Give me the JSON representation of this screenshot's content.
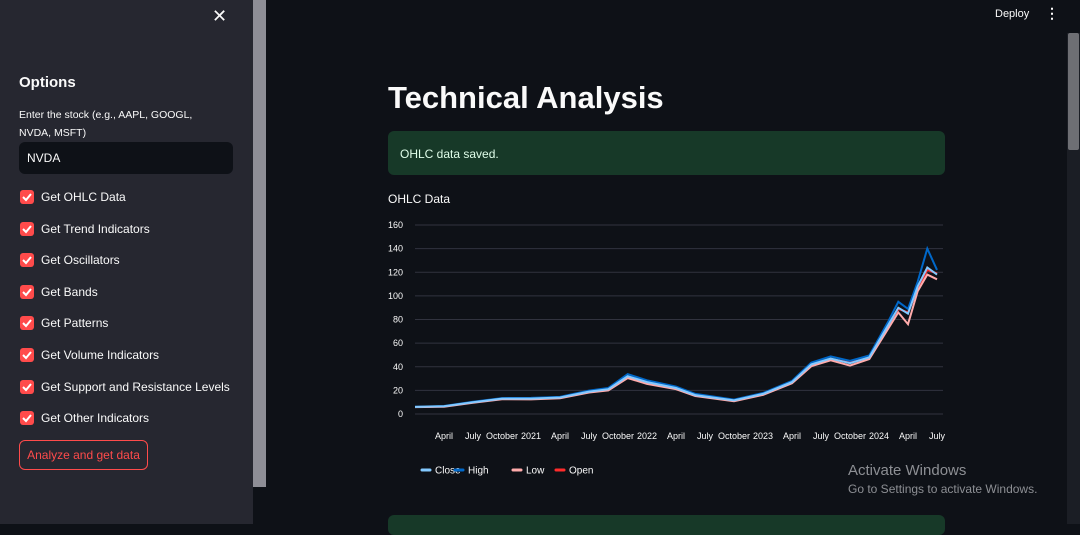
{
  "top_bar": {
    "deploy": "Deploy"
  },
  "sidebar": {
    "title": "Options",
    "input_label": "Enter the stock (e.g., AAPL, GOOGL, NVDA, MSFT)",
    "input_value": "NVDA",
    "checkboxes": [
      {
        "label": "Get OHLC Data",
        "checked": true
      },
      {
        "label": "Get Trend Indicators",
        "checked": true
      },
      {
        "label": "Get Oscillators",
        "checked": true
      },
      {
        "label": "Get Bands",
        "checked": true
      },
      {
        "label": "Get Patterns",
        "checked": true
      },
      {
        "label": "Get Volume Indicators",
        "checked": true
      },
      {
        "label": "Get Support and Resistance Levels",
        "checked": true
      },
      {
        "label": "Get Other Indicators",
        "checked": true
      }
    ],
    "button": "Analyze and get data"
  },
  "main": {
    "title": "Technical Analysis",
    "success_message": "OHLC data saved."
  },
  "chart_data": {
    "type": "line",
    "title": "OHLC Data",
    "x": [
      "2020-01",
      "2020-04",
      "2020-07",
      "2020-10",
      "2021-01",
      "2021-04",
      "2021-07",
      "2021-09",
      "2021-11",
      "2022-01",
      "2022-04",
      "2022-06",
      "2022-10",
      "2023-01",
      "2023-04",
      "2023-06",
      "2023-08",
      "2023-10",
      "2023-12",
      "2024-02",
      "2024-03",
      "2024-04",
      "2024-05",
      "2024-06",
      "2024-07"
    ],
    "series": [
      {
        "name": "Close",
        "color": "#83c9ff",
        "values": [
          6,
          6.5,
          10,
          13,
          13,
          14,
          19,
          21,
          32,
          27,
          22,
          16,
          11.5,
          17,
          27,
          42,
          47,
          43,
          48,
          76,
          90,
          85,
          108,
          124,
          118
        ]
      },
      {
        "name": "High",
        "color": "#0068c9",
        "values": [
          6.2,
          6.8,
          10.4,
          13.5,
          13.6,
          14.5,
          19.8,
          22,
          33.8,
          28.5,
          23.2,
          17,
          12.2,
          17.8,
          28,
          43.5,
          48.8,
          45,
          49.5,
          79,
          95,
          89,
          112,
          140,
          122
        ]
      },
      {
        "name": "Low",
        "color": "#ffabab",
        "values": [
          5.8,
          6.2,
          9.6,
          12.5,
          12.4,
          13.4,
          18.2,
          20,
          30.5,
          25.5,
          21,
          15.2,
          10.8,
          16.2,
          26,
          40.5,
          45.5,
          41,
          46.5,
          73,
          86,
          76,
          104,
          118,
          114
        ]
      },
      {
        "name": "Open",
        "color": "#ff2b2b",
        "values": [
          5.9,
          6.4,
          9.8,
          12.8,
          13.1,
          13.8,
          18.8,
          20.7,
          31.5,
          27.5,
          22.4,
          16.3,
          11.3,
          16.8,
          26.6,
          41.5,
          46.6,
          43.5,
          47.6,
          75,
          89,
          86,
          106,
          122,
          119
        ]
      }
    ],
    "xlim": [
      "2020-01",
      "2024-07"
    ],
    "xticks": [
      {
        "value": "2020-04",
        "label": "April"
      },
      {
        "value": "2020-07",
        "label": "July"
      },
      {
        "value": "2020-10",
        "label": "October"
      },
      {
        "value": "2021-01",
        "label": "2021"
      },
      {
        "value": "2021-04",
        "label": "April"
      },
      {
        "value": "2021-07",
        "label": "July"
      },
      {
        "value": "2021-10",
        "label": "October"
      },
      {
        "value": "2022-01",
        "label": "2022"
      },
      {
        "value": "2022-04",
        "label": "April"
      },
      {
        "value": "2022-07",
        "label": "July"
      },
      {
        "value": "2022-10",
        "label": "October"
      },
      {
        "value": "2023-01",
        "label": "2023"
      },
      {
        "value": "2023-04",
        "label": "April"
      },
      {
        "value": "2023-07",
        "label": "July"
      },
      {
        "value": "2023-10",
        "label": "October"
      },
      {
        "value": "2024-01",
        "label": "2024"
      },
      {
        "value": "2024-04",
        "label": "April"
      },
      {
        "value": "2024-07",
        "label": "July"
      }
    ],
    "ylim": [
      0,
      160
    ],
    "yticks": [
      0,
      20,
      40,
      60,
      80,
      100,
      120,
      140,
      160
    ],
    "grid": true
  },
  "watermark": {
    "title": "Activate Windows",
    "subtitle": "Go to Settings to activate Windows."
  }
}
